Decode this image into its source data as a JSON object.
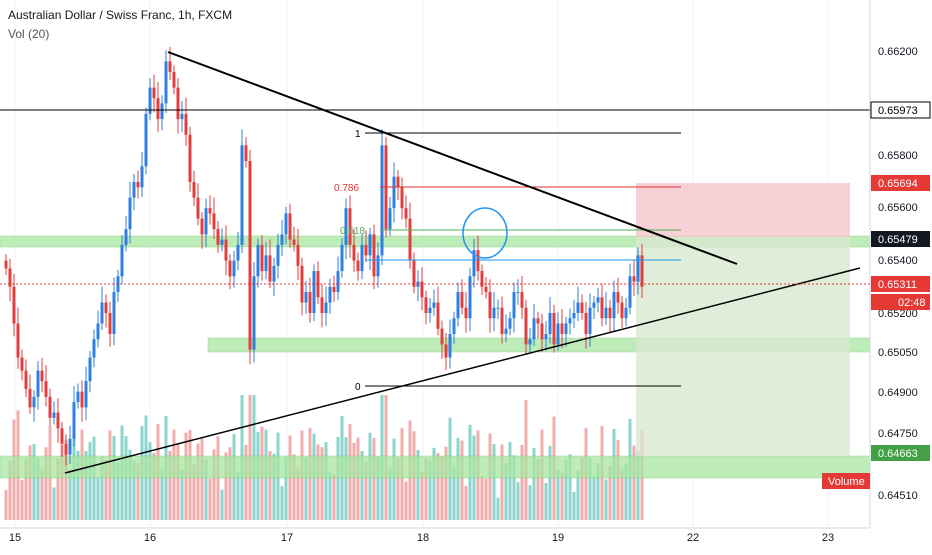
{
  "header": {
    "title": "Australian Dollar / Swiss Franc, 1h, FXCM",
    "volume_label": "Vol (20)"
  },
  "colors": {
    "up": "#2f7fe0",
    "down": "#e0403f",
    "vol_up": "#7fcfc9",
    "vol_down": "#f2a3a3",
    "zone_green": "#a8e6a1",
    "zone_red": "#f5c6cb",
    "zone_target": "#d7e9cf",
    "trend": "#000000",
    "fib_red": "#e03030",
    "fib_green": "#4caf50",
    "fib_blue": "#2196f3",
    "price_line": "#e53935"
  },
  "chart_data": {
    "type": "candlestick",
    "symbol": "Australian Dollar / Swiss Franc, 1h, FXCM",
    "x_ticks": [
      "15",
      "16",
      "17",
      "18",
      "19",
      "22",
      "23"
    ],
    "y_ticks": [
      "0.66200",
      "0.65800",
      "0.65600",
      "0.65400",
      "0.65200",
      "0.65050",
      "0.64900",
      "0.64750",
      "0.64510"
    ],
    "ylim": [
      0.6443,
      0.663
    ],
    "price_tags": [
      {
        "label": "0.65973",
        "value": 0.65973,
        "style": "black"
      },
      {
        "label": "0.65694",
        "value": 0.65694,
        "style": "red"
      },
      {
        "label": "0.65479",
        "value": 0.65479,
        "style": "dark"
      },
      {
        "label": "0.65311",
        "value": 0.65311,
        "style": "red"
      },
      {
        "label": "02:48",
        "value": 0.65235,
        "style": "red"
      },
      {
        "label": "0.64663",
        "value": 0.64663,
        "style": "green"
      }
    ],
    "volume_label": "Volume",
    "fib_labels": [
      {
        "label": "1",
        "value": 0.659
      },
      {
        "label": "0.786",
        "value": 0.657
      },
      {
        "label": "0.618",
        "value": 0.655
      },
      {
        "label": "0",
        "value": 0.6491
      }
    ],
    "closes": [
      0.6539,
      0.6532,
      0.6518,
      0.6505,
      0.65,
      0.6493,
      0.6486,
      0.649,
      0.65,
      0.6496,
      0.649,
      0.6482,
      0.6484,
      0.6478,
      0.6472,
      0.6468,
      0.6474,
      0.6488,
      0.6492,
      0.6486,
      0.6496,
      0.6505,
      0.6512,
      0.6518,
      0.6526,
      0.6522,
      0.6514,
      0.653,
      0.6536,
      0.6548,
      0.6554,
      0.6566,
      0.6572,
      0.657,
      0.6578,
      0.6598,
      0.6608,
      0.6604,
      0.6596,
      0.6602,
      0.6618,
      0.6614,
      0.6608,
      0.6596,
      0.6598,
      0.659,
      0.6572,
      0.6566,
      0.6558,
      0.6552,
      0.6562,
      0.656,
      0.6554,
      0.6548,
      0.655,
      0.6542,
      0.6536,
      0.6542,
      0.6548,
      0.6586,
      0.658,
      0.6508,
      0.6536,
      0.6548,
      0.6538,
      0.6544,
      0.6534,
      0.654,
      0.6548,
      0.6552,
      0.656,
      0.655,
      0.6548,
      0.654,
      0.6526,
      0.653,
      0.6522,
      0.6538,
      0.6528,
      0.6522,
      0.6526,
      0.6532,
      0.653,
      0.6538,
      0.6548,
      0.6562,
      0.6548,
      0.6542,
      0.6538,
      0.6548,
      0.6544,
      0.6552,
      0.6536,
      0.6544,
      0.6586,
      0.6554,
      0.6562,
      0.6574,
      0.657,
      0.6562,
      0.6558,
      0.6542,
      0.6532,
      0.6534,
      0.6528,
      0.6522,
      0.6524,
      0.6526,
      0.6516,
      0.651,
      0.6505,
      0.6514,
      0.652,
      0.653,
      0.6524,
      0.652,
      0.6536,
      0.6546,
      0.6538,
      0.6532,
      0.653,
      0.652,
      0.6524,
      0.6524,
      0.6514,
      0.6516,
      0.652,
      0.653,
      0.653,
      0.6524,
      0.651,
      0.6512,
      0.652,
      0.6518,
      0.6512,
      0.6514,
      0.6522,
      0.651,
      0.6518,
      0.6514,
      0.6518,
      0.652,
      0.6522,
      0.6526,
      0.6522,
      0.6514,
      0.6524,
      0.6526,
      0.6528,
      0.652,
      0.6524,
      0.652,
      0.653,
      0.6526,
      0.652,
      0.6524,
      0.6536,
      0.6534,
      0.6544,
      0.6532
    ]
  }
}
